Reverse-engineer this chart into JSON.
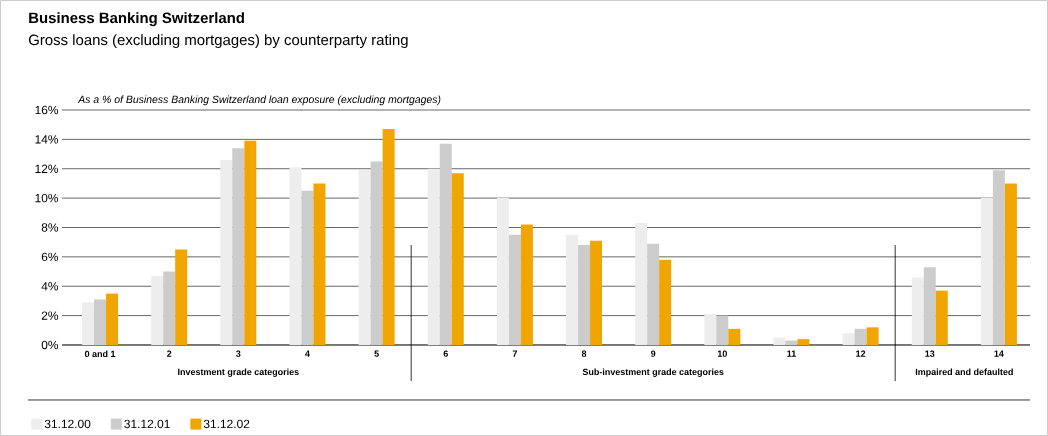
{
  "chart_data": {
    "type": "bar",
    "title": "Business Banking Switzerland",
    "subtitle": "Gross loans (excluding mortgages) by counterparty rating",
    "ylabel": "As a % of Business Banking Switzerland loan exposure (excluding mortgages)",
    "categories": [
      "0 and 1",
      "2",
      "3",
      "4",
      "5",
      "6",
      "7",
      "8",
      "9",
      "10",
      "11",
      "12",
      "13",
      "14"
    ],
    "series": [
      {
        "name": "31.12.00",
        "color": "#ededed",
        "values": [
          2.9,
          4.7,
          12.6,
          12.1,
          11.9,
          12.0,
          10.0,
          7.5,
          8.3,
          2.1,
          0.5,
          0.8,
          4.6,
          10.0
        ]
      },
      {
        "name": "31.12.01",
        "color": "#cccccc",
        "values": [
          3.1,
          5.0,
          13.4,
          10.5,
          12.5,
          13.7,
          7.5,
          6.8,
          6.9,
          2.0,
          0.3,
          1.1,
          5.3,
          11.9
        ]
      },
      {
        "name": "31.12.02",
        "color": "#f0a500",
        "values": [
          3.5,
          6.5,
          13.9,
          11.0,
          14.7,
          11.7,
          8.2,
          7.1,
          5.8,
          1.1,
          0.4,
          1.2,
          3.7,
          11.0
        ]
      }
    ],
    "ylim": [
      0,
      16
    ],
    "yticks": [
      {
        "value": 0,
        "label": "0%"
      },
      {
        "value": 2,
        "label": "2%"
      },
      {
        "value": 4,
        "label": "4%"
      },
      {
        "value": 6,
        "label": "6%"
      },
      {
        "value": 8,
        "label": "8%"
      },
      {
        "value": 10,
        "label": "10%"
      },
      {
        "value": 12,
        "label": "12%"
      },
      {
        "value": 14,
        "label": "14%"
      },
      {
        "value": 16,
        "label": "16%"
      }
    ],
    "annotations": [
      "Investment grade categories",
      "Sub-investment grade categories",
      "Impaired and defaulted"
    ],
    "grid": "y",
    "legend": "bottom left"
  }
}
